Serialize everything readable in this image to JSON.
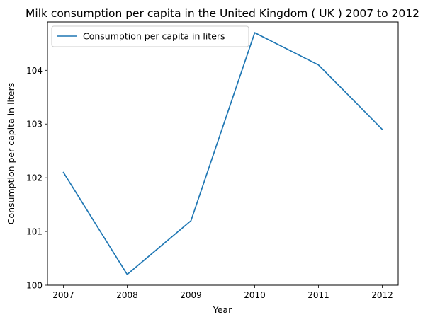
{
  "chart_data": {
    "type": "line",
    "title": "Milk consumption per capita in the United Kingdom ( UK ) 2007 to 2012",
    "xlabel": "Year",
    "ylabel": "Consumption per capita in liters",
    "x": [
      2007,
      2008,
      2009,
      2010,
      2011,
      2012
    ],
    "series": [
      {
        "name": "Consumption per capita in liters",
        "values": [
          102.1,
          100.2,
          101.2,
          104.7,
          104.1,
          102.9
        ],
        "color": "#1f77b4"
      }
    ],
    "xticks": [
      "2007",
      "2008",
      "2009",
      "2010",
      "2011",
      "2012"
    ],
    "yticks": [
      100,
      101,
      102,
      103,
      104
    ],
    "ylim": [
      100.0,
      104.9
    ],
    "legend_position": "top-left",
    "grid": false
  }
}
